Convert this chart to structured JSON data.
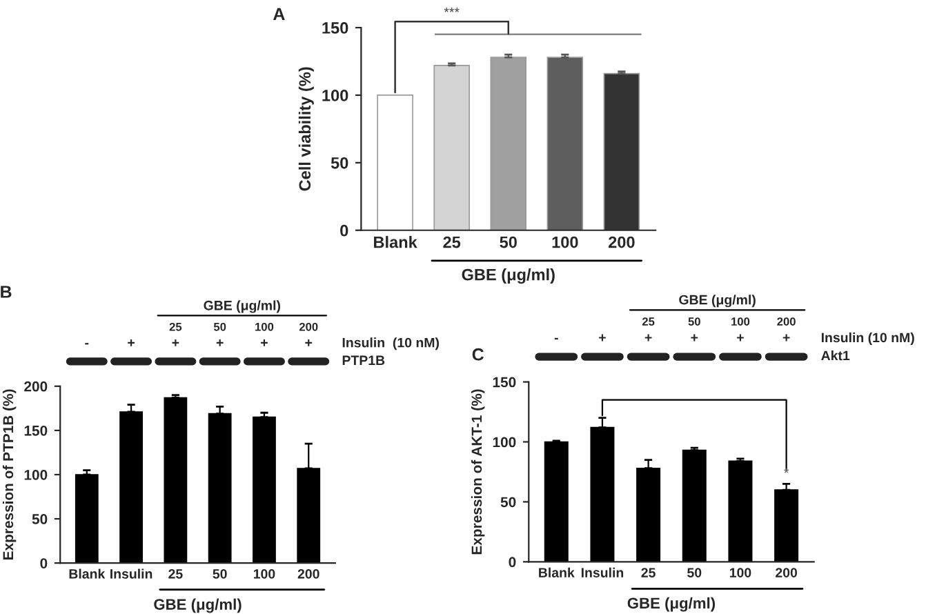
{
  "chart_data": [
    {
      "type": "bar",
      "title": "A",
      "ylabel": "Cell viability (%)",
      "xlabel": "GBE (μg/ml)",
      "categories": [
        "Blank",
        "25",
        "50",
        "100",
        "200"
      ],
      "values": [
        100,
        122,
        128,
        128,
        116
      ],
      "errors": [
        null,
        [
          122,
          123.5
        ],
        [
          128,
          130
        ],
        [
          128,
          130
        ],
        [
          116,
          117.5
        ]
      ],
      "colors": [
        "#ffffff",
        "#d4d4d4",
        "#a0a0a0",
        "#5e5e5e",
        "#333333"
      ],
      "ylim": [
        0,
        150
      ],
      "yticks": [
        0,
        50,
        100,
        150
      ],
      "annotations": [
        "***"
      ],
      "ref_lines": [
        {
          "axis": "y",
          "value": 145,
          "color": "#888888"
        }
      ]
    },
    {
      "type": "bar",
      "title": "B",
      "ylabel": "Expression of PTP1B (%)",
      "xlabel": "GBE (μg/ml)",
      "categories": [
        "Blank",
        "Insulin",
        "25",
        "50",
        "100",
        "200"
      ],
      "values": [
        100,
        171,
        187,
        169,
        165,
        107
      ],
      "errors": [
        [
          100,
          105
        ],
        [
          171,
          179
        ],
        [
          187,
          190
        ],
        [
          169,
          177
        ],
        [
          165,
          170
        ],
        [
          107,
          135
        ]
      ],
      "color": "#000000",
      "ylim": [
        0,
        200
      ],
      "yticks": [
        0,
        50,
        100,
        150,
        200
      ],
      "annotations": [
        "GBE (μg/ml)",
        "25",
        "50",
        "100",
        "200",
        "-",
        "+",
        "+",
        "+",
        "+",
        "+",
        "Insulin  (10 nM)",
        "PTP1B"
      ]
    },
    {
      "type": "bar",
      "title": "C",
      "ylabel": "Expression of AKT-1 (%)",
      "xlabel": "GBE (μg/ml)",
      "categories": [
        "Blank",
        "Insulin",
        "25",
        "50",
        "100",
        "200"
      ],
      "values": [
        100,
        112,
        78,
        93,
        84,
        60
      ],
      "errors": [
        [
          100,
          101
        ],
        [
          112,
          120
        ],
        [
          78,
          85
        ],
        [
          93,
          95
        ],
        [
          84,
          86
        ],
        [
          60,
          65
        ]
      ],
      "color": "#000000",
      "ylim": [
        0,
        150
      ],
      "yticks": [
        0,
        50,
        100,
        150
      ],
      "annotations": [
        "GBE (μg/ml)",
        "25",
        "50",
        "100",
        "200",
        "-",
        "+",
        "+",
        "+",
        "+",
        "+",
        "Insulin (10 nM)",
        "Akt1",
        {
          "text": "*",
          "x": "200",
          "y": 65
        }
      ]
    }
  ]
}
